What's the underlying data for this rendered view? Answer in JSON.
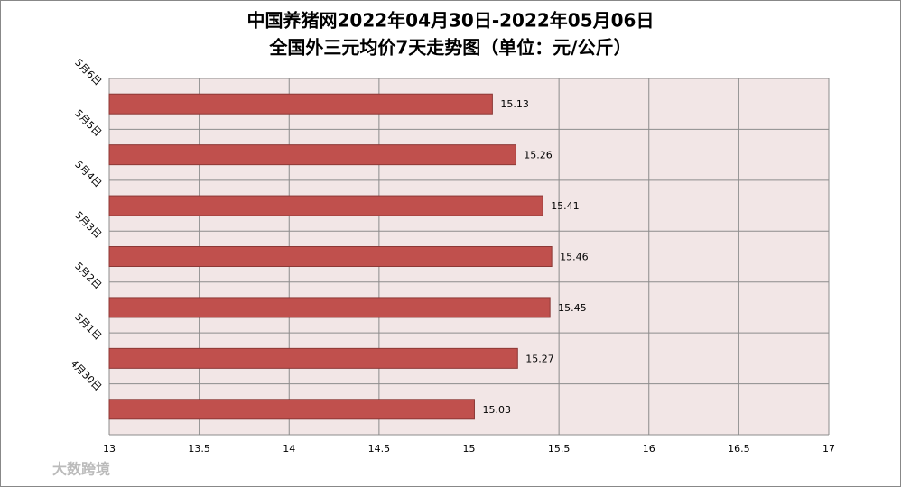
{
  "chart_data": {
    "type": "barh",
    "title": [
      "中国养猪网2022年04月30日-2022年05月06日",
      "全国外三元均价7天走势图（单位：元/公斤）"
    ],
    "categories": [
      "4月30日",
      "5月1日",
      "5月2日",
      "5月3日",
      "5月4日",
      "5月5日",
      "5月6日"
    ],
    "values": [
      15.03,
      15.27,
      15.45,
      15.46,
      15.41,
      15.26,
      15.13
    ],
    "color": "#c0504d",
    "xlim": [
      13,
      17
    ],
    "xticks": [
      13,
      13.5,
      14,
      14.5,
      15,
      15.5,
      16,
      16.5,
      17
    ],
    "grid": true,
    "watermark": "大数跨境"
  }
}
